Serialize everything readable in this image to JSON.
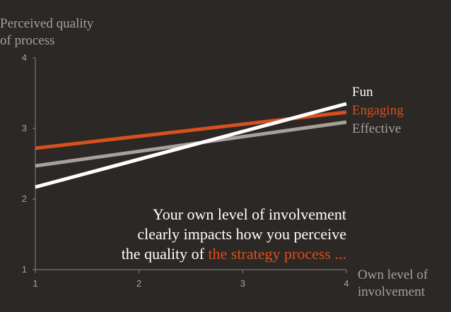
{
  "chart_data": {
    "type": "line",
    "title": "",
    "ylabel_lines": [
      "Perceived quality",
      "of process"
    ],
    "xlabel_lines": [
      "Own level of",
      "involvement"
    ],
    "x_ticks": [
      "1",
      "2",
      "3",
      "4"
    ],
    "y_ticks": [
      "1",
      "2",
      "3",
      "4"
    ],
    "xlim": [
      1,
      4
    ],
    "ylim": [
      1,
      4
    ],
    "grid": false,
    "series": [
      {
        "name": "Fun",
        "x": [
          1,
          4
        ],
        "y": [
          2.17,
          3.35
        ],
        "color": "#ffffff"
      },
      {
        "name": "Engaging",
        "x": [
          1,
          4
        ],
        "y": [
          2.72,
          3.23
        ],
        "color": "#d9501e"
      },
      {
        "name": "Effective",
        "x": [
          1,
          4
        ],
        "y": [
          2.47,
          3.09
        ],
        "color": "#a8a09a"
      }
    ],
    "annotation": {
      "line1": "Your own level of involvement",
      "line2": "clearly impacts how you perceive",
      "line3_prefix": "the quality of ",
      "line3_highlight": "the strategy process ...",
      "highlight_color": "#d9501e"
    }
  }
}
